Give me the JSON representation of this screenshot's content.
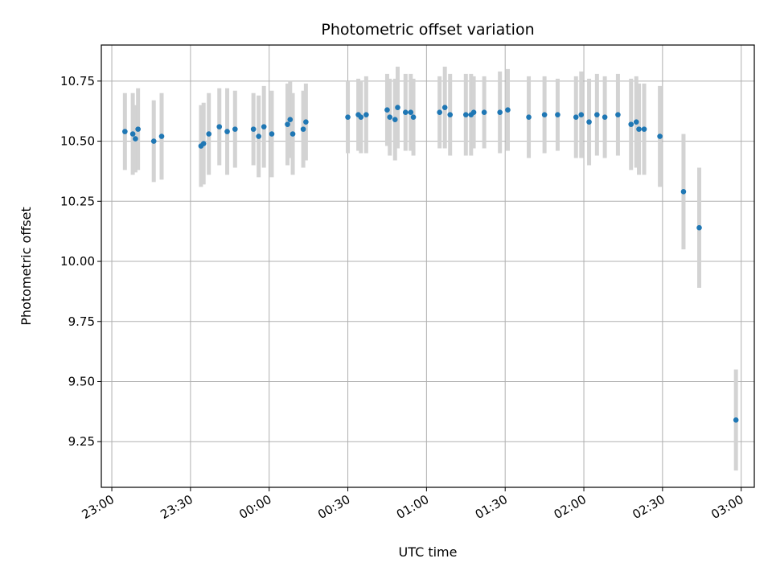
{
  "chart_data": {
    "type": "scatter",
    "title": "Photometric offset variation",
    "xlabel": "UTC time",
    "ylabel": "Photometric offset",
    "xlim": [
      "22:56",
      "03:05"
    ],
    "ylim": [
      9.06,
      10.9
    ],
    "grid": true,
    "xticks": [
      "23:00",
      "23:30",
      "00:00",
      "00:30",
      "01:00",
      "01:30",
      "02:00",
      "02:30",
      "03:00"
    ],
    "yticks": [
      "9.25",
      "9.50",
      "9.75",
      "10.00",
      "10.25",
      "10.50",
      "10.75"
    ],
    "colors": {
      "point": "#1f77b4",
      "errorbar": "#d3d3d3",
      "grid": "#b0b0b0"
    },
    "series": [
      {
        "x": [
          "23:05",
          "23:08",
          "23:09",
          "23:10",
          "23:16",
          "23:19",
          "23:34",
          "23:35",
          "23:37",
          "23:41",
          "23:44",
          "23:47",
          "23:54",
          "23:56",
          "23:58",
          "24:01",
          "24:07",
          "24:08",
          "24:09",
          "24:13",
          "24:14",
          "24:30",
          "24:34",
          "24:35",
          "24:37",
          "24:45",
          "24:46",
          "24:48",
          "24:49",
          "24:52",
          "24:54",
          "24:55",
          "25:05",
          "25:07",
          "25:09",
          "25:15",
          "25:17",
          "25:18",
          "25:22",
          "25:28",
          "25:31",
          "25:39",
          "25:45",
          "25:50",
          "25:57",
          "25:59",
          "26:02",
          "26:05",
          "26:08",
          "26:13",
          "26:18",
          "26:20",
          "26:21",
          "26:23",
          "26:29",
          "26:38",
          "26:44",
          "26:58"
        ],
        "y": [
          10.54,
          10.53,
          10.51,
          10.55,
          10.5,
          10.52,
          10.48,
          10.49,
          10.53,
          10.56,
          10.54,
          10.55,
          10.55,
          10.52,
          10.56,
          10.53,
          10.57,
          10.59,
          10.53,
          10.55,
          10.58,
          10.6,
          10.61,
          10.6,
          10.61,
          10.63,
          10.6,
          10.59,
          10.64,
          10.62,
          10.62,
          10.6,
          10.62,
          10.64,
          10.61,
          10.61,
          10.61,
          10.62,
          10.62,
          10.62,
          10.63,
          10.6,
          10.61,
          10.61,
          10.6,
          10.61,
          10.58,
          10.61,
          10.6,
          10.61,
          10.57,
          10.58,
          10.55,
          10.55,
          10.52,
          10.29,
          10.14,
          9.34
        ],
        "err": [
          0.16,
          0.17,
          0.14,
          0.17,
          0.17,
          0.18,
          0.17,
          0.17,
          0.17,
          0.16,
          0.18,
          0.16,
          0.15,
          0.17,
          0.17,
          0.18,
          0.17,
          0.16,
          0.17,
          0.16,
          0.16,
          0.15,
          0.15,
          0.15,
          0.16,
          0.15,
          0.16,
          0.17,
          0.17,
          0.16,
          0.16,
          0.16,
          0.15,
          0.17,
          0.17,
          0.17,
          0.17,
          0.15,
          0.15,
          0.17,
          0.17,
          0.17,
          0.16,
          0.15,
          0.17,
          0.18,
          0.18,
          0.17,
          0.17,
          0.17,
          0.19,
          0.19,
          0.19,
          0.19,
          0.21,
          0.24,
          0.25,
          0.21
        ]
      }
    ]
  }
}
